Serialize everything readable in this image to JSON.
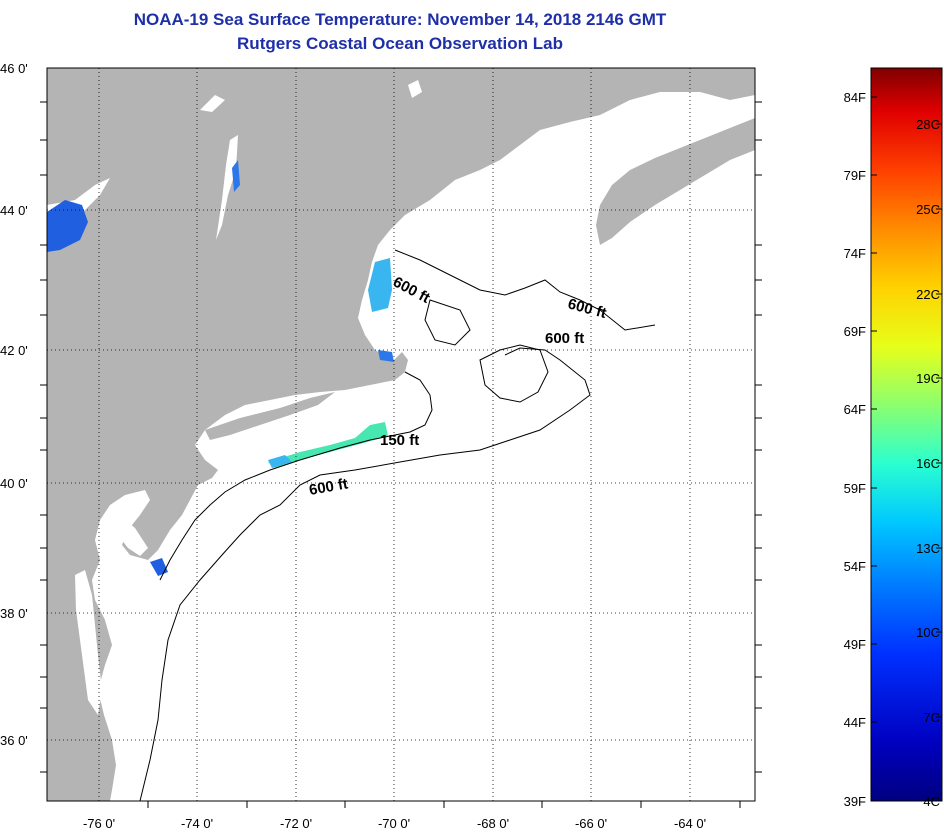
{
  "title": {
    "line1": "NOAA-19 Sea Surface Temperature:  November 14, 2018 2146 GMT",
    "line2": "Rutgers Coastal Ocean Observation Lab"
  },
  "latitude_labels": [
    "46 0'",
    "44 0'",
    "42 0'",
    "40 0'",
    "38 0'",
    "36 0'"
  ],
  "longitude_labels": [
    "-76 0'",
    "-74 0'",
    "-72 0'",
    "-70 0'",
    "-68 0'",
    "-66 0'",
    "-64 0'"
  ],
  "depth_labels": [
    "600 ft",
    "600 ft",
    "600 ft",
    "150 ft",
    "600 ft"
  ],
  "colorbar": {
    "fahrenheit_labels": [
      "84F",
      "79F",
      "74F",
      "69F",
      "64F",
      "59F",
      "54F",
      "49F",
      "44F",
      "39F"
    ],
    "celsius_labels": [
      "28C",
      "25C",
      "22C",
      "19C",
      "16C",
      "13C",
      "10C",
      "7C",
      "4C"
    ],
    "colors": [
      "#800000",
      "#e00000",
      "#ff4000",
      "#ff8c00",
      "#ffd200",
      "#e6ff1a",
      "#8cff6e",
      "#2affd0",
      "#00c8ff",
      "#0080ff",
      "#0030ff",
      "#0000c0",
      "#000080"
    ]
  },
  "colors": {
    "land": "#b4b4b4",
    "ocean": "#ffffff",
    "title": "#1f2fa8",
    "cold_patch": "#1f5fe0",
    "cool_patch": "#39b6f0",
    "warm_patch": "#48e6b0"
  }
}
